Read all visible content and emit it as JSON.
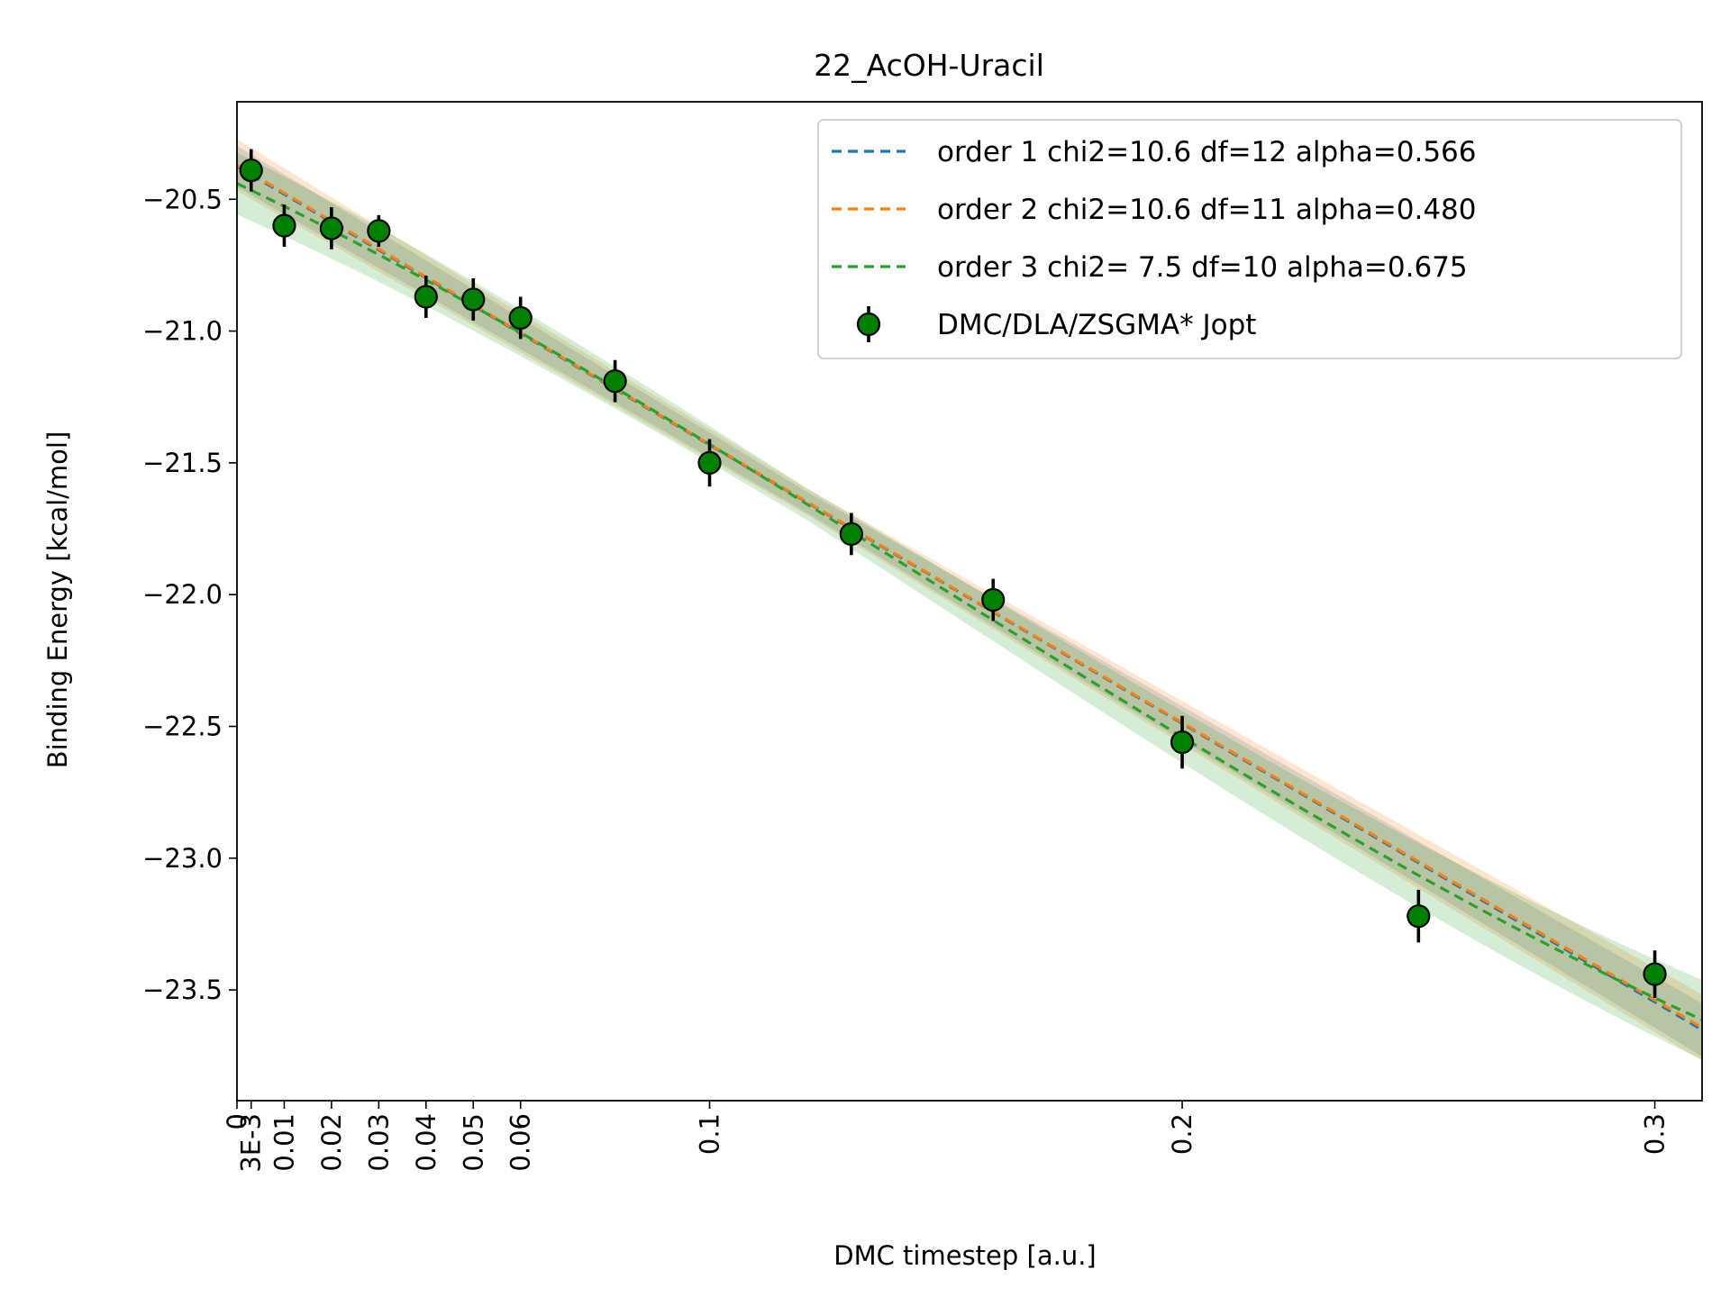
{
  "chart_data": {
    "type": "scatter",
    "title": "22_AcOH-Uracil",
    "xlabel": "DMC timestep [a.u.]",
    "ylabel": "Binding Energy [kcal/mol]",
    "xlim": [
      0,
      0.31
    ],
    "ylim": [
      -23.92,
      -20.13
    ],
    "x_ticks": [
      {
        "value": 0,
        "label": "0"
      },
      {
        "value": 0.003,
        "label": "3E-3"
      },
      {
        "value": 0.01,
        "label": "0.01"
      },
      {
        "value": 0.02,
        "label": "0.02"
      },
      {
        "value": 0.03,
        "label": "0.03"
      },
      {
        "value": 0.04,
        "label": "0.04"
      },
      {
        "value": 0.05,
        "label": "0.05"
      },
      {
        "value": 0.06,
        "label": "0.06"
      },
      {
        "value": 0.1,
        "label": "0.1"
      },
      {
        "value": 0.2,
        "label": "0.2"
      },
      {
        "value": 0.3,
        "label": "0.3"
      }
    ],
    "y_ticks": [
      {
        "value": -20.5,
        "label": "−20.5"
      },
      {
        "value": -21.0,
        "label": "−21.0"
      },
      {
        "value": -21.5,
        "label": "−21.5"
      },
      {
        "value": -22.0,
        "label": "−22.0"
      },
      {
        "value": -22.5,
        "label": "−22.5"
      },
      {
        "value": -23.0,
        "label": "−23.0"
      },
      {
        "value": -23.5,
        "label": "−23.5"
      }
    ],
    "grid": false,
    "legend_position": "top-right",
    "data_series": {
      "name": "DMC/DLA/ZSGMA* Jopt",
      "color": "#008000",
      "x": [
        0.003,
        0.01,
        0.02,
        0.03,
        0.04,
        0.05,
        0.06,
        0.08,
        0.1,
        0.13,
        0.16,
        0.2,
        0.25,
        0.3
      ],
      "y": [
        -20.39,
        -20.6,
        -20.61,
        -20.62,
        -20.87,
        -20.88,
        -20.95,
        -21.19,
        -21.5,
        -21.77,
        -22.02,
        -22.56,
        -23.22,
        -23.44
      ],
      "yerr": [
        0.08,
        0.08,
        0.08,
        0.06,
        0.08,
        0.08,
        0.08,
        0.08,
        0.09,
        0.08,
        0.08,
        0.1,
        0.1,
        0.09
      ]
    },
    "fits": [
      {
        "name": "order 1 chi2=10.6 df=12 alpha=0.566",
        "color": "#1f77b4",
        "coeffs": [
          -20.375,
          -10.57
        ],
        "band": [
          0.04,
          0.08
        ]
      },
      {
        "name": "order 2 chi2=10.6 df=11 alpha=0.480",
        "color": "#ff7f0e",
        "coeffs": [
          -20.37,
          -10.62,
          0.2
        ],
        "band": [
          0.05,
          0.1
        ]
      },
      {
        "name": "order 3 chi2= 7.5 df=10 alpha=0.675",
        "color": "#2ca02c",
        "coeffs": [
          -20.44,
          -8.5,
          -18.0,
          40.0
        ],
        "band": [
          0.06,
          0.12
        ]
      }
    ]
  }
}
